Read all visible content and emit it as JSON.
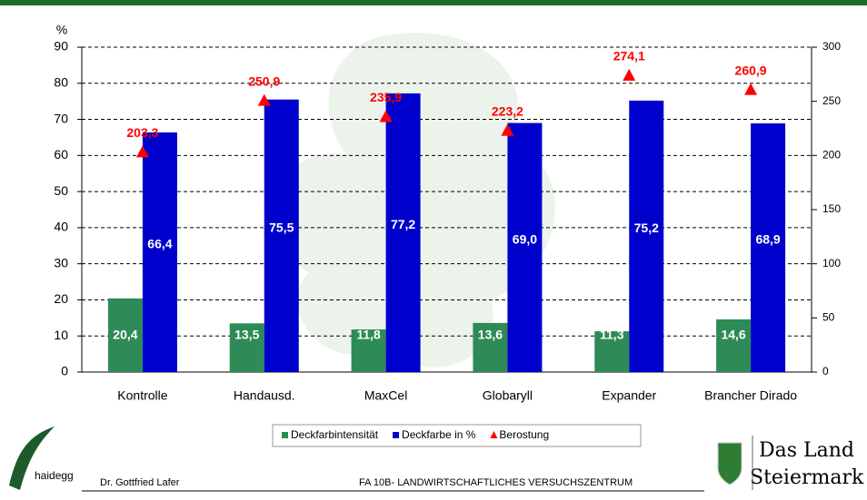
{
  "chart_data": {
    "type": "bar",
    "y_label": "%",
    "categories": [
      "Kontrolle",
      "Handausd.",
      "MaxCel",
      "Globaryll",
      "Expander",
      "Brancher Dirado"
    ],
    "series": [
      {
        "name": "Deckfarbintensität",
        "color": "#2e8b57",
        "values": [
          20.4,
          13.5,
          11.8,
          13.6,
          11.3,
          14.6
        ],
        "value_labels": [
          "20,4",
          "13,5",
          "11,8",
          "13,6",
          "11,3",
          "14,6"
        ]
      },
      {
        "name": "Deckfarbe in %",
        "color": "#0000cc",
        "values": [
          66.4,
          75.5,
          77.2,
          69.0,
          75.2,
          68.9
        ],
        "value_labels": [
          "66,4",
          "75,5",
          "77,2",
          "69,0",
          "75,2",
          "68,9"
        ]
      },
      {
        "name": "Berostung",
        "color": "#ff0000",
        "type": "scatter",
        "axis": "y2",
        "values": [
          203.3,
          250.9,
          235.9,
          223.2,
          274.1,
          260.9
        ],
        "value_labels": [
          "203,3",
          "250,9",
          "235,9",
          "223,2",
          "274,1",
          "260,9"
        ]
      }
    ],
    "ylim": [
      0,
      90
    ],
    "yticks": [
      0,
      10,
      20,
      30,
      40,
      50,
      60,
      70,
      80,
      90
    ],
    "y2lim": [
      0,
      300
    ],
    "y2ticks": [
      0,
      50,
      100,
      150,
      200,
      250,
      300
    ],
    "grid": true
  },
  "footer": {
    "logo_left": "haidegg",
    "author": "Dr. Gottfried Lafer",
    "institute": "FA 10B- LANDWIRTSCHAFTLICHES VERSUCHSZENTRUM",
    "logo_right_line1": "Das Land",
    "logo_right_line2": "Steiermark"
  }
}
